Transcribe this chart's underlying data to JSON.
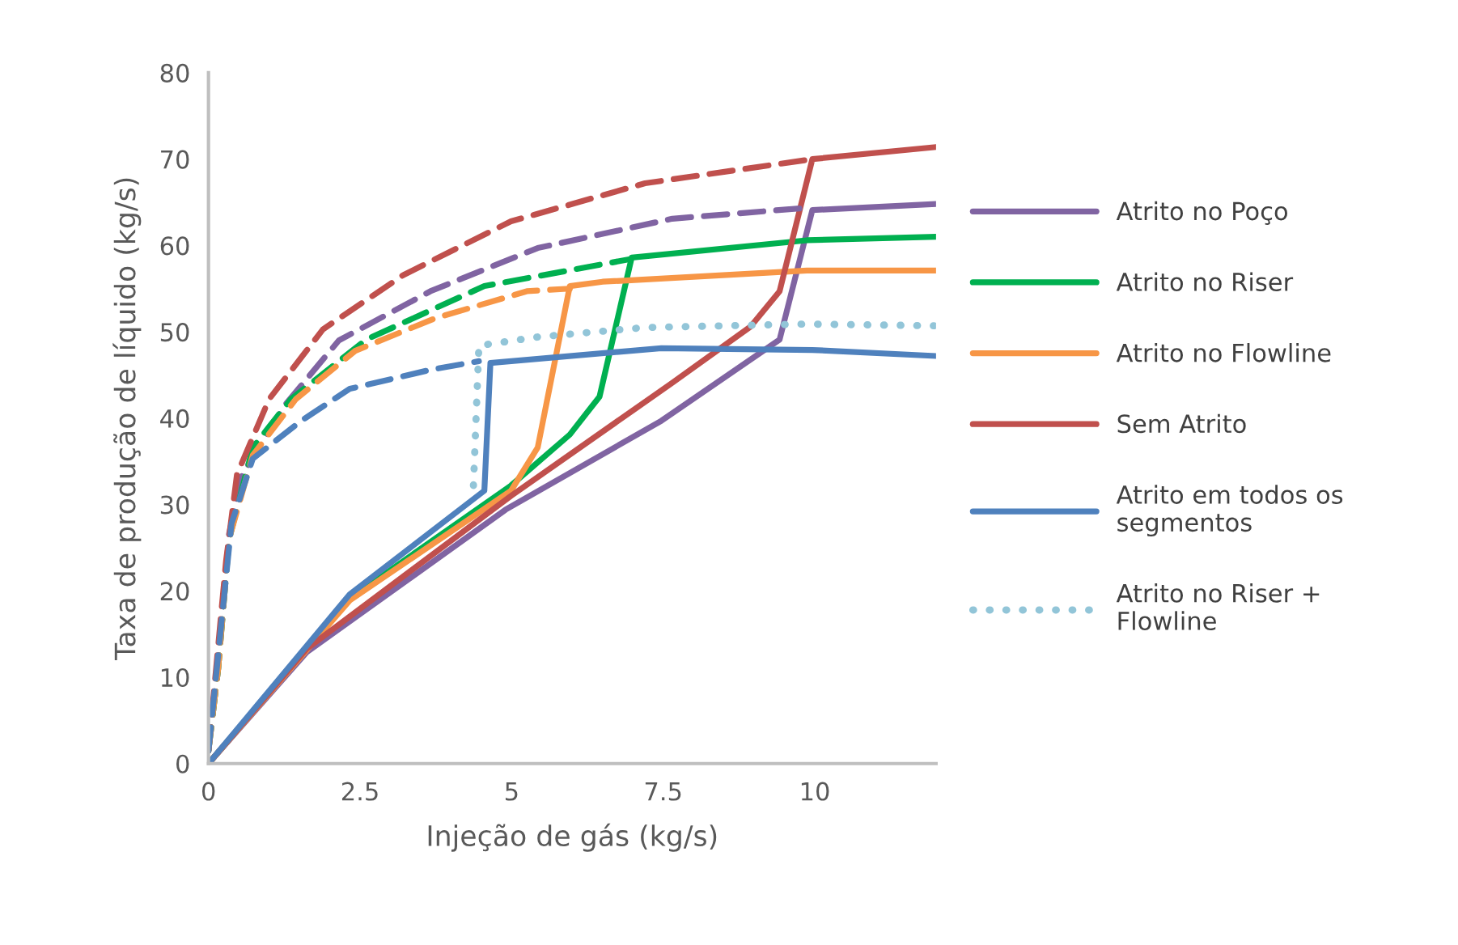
{
  "chart_data": {
    "type": "line",
    "xlabel": "Injeção de gás (kg/s)",
    "ylabel": "Taxa de produção de líquido (kg/s)",
    "xlim": [
      0,
      12
    ],
    "xticks": [
      0,
      2.5,
      5,
      7.5,
      10
    ],
    "ylim": [
      0,
      80
    ],
    "yticks": [
      0,
      10,
      20,
      30,
      40,
      50,
      60,
      70,
      80
    ],
    "grid": false,
    "legend": "right",
    "marker": "none",
    "series": [
      {
        "name": "Atrito no Poço",
        "color": "#8064a2",
        "line_style": "solid",
        "x": [
          0,
          1.62,
          4.9,
          7.47,
          9.42,
          9.96,
          12
        ],
        "values": [
          0,
          12.9,
          29.4,
          39.7,
          49.1,
          64.1,
          64.8
        ]
      },
      {
        "name": "Atrito no Riser",
        "color": "#00b050",
        "line_style": "solid",
        "x": [
          0,
          2.33,
          4.99,
          5.96,
          6.45,
          6.98,
          9.87,
          12
        ],
        "values": [
          0,
          19.1,
          32.2,
          38.1,
          42.5,
          58.6,
          60.6,
          61
        ]
      },
      {
        "name": "Atrito no Flowline",
        "color": "#f79646",
        "line_style": "solid",
        "x": [
          0,
          2.33,
          4.99,
          5.43,
          5.96,
          6.5,
          9.87,
          12
        ],
        "values": [
          0,
          18.9,
          31.6,
          36.6,
          55.3,
          55.8,
          57.1,
          57.1
        ]
      },
      {
        "name": "Sem Atrito",
        "color": "#c0504d",
        "line_style": "solid",
        "x": [
          0,
          1.62,
          4.99,
          7.65,
          8.94,
          9.42,
          9.96,
          12
        ],
        "values": [
          0,
          13.3,
          31,
          44.1,
          50.6,
          54.7,
          70,
          71.4
        ]
      },
      {
        "name": "Atrito em todos os segmentos",
        "color": "#4f81bd",
        "line_style": "solid",
        "x": [
          0,
          2.33,
          4.55,
          4.65,
          7.47,
          9.96,
          12
        ],
        "values": [
          0,
          19.6,
          31.6,
          46.4,
          48.1,
          47.9,
          47.2
        ]
      },
      {
        "name": "Atrito no Riser + Flowline",
        "color": "#92c5d8",
        "line_style": "dotted",
        "x": [
          4.37,
          4.46,
          5.43,
          7.2,
          9.87,
          12
        ],
        "values": [
          32.2,
          48.4,
          49.4,
          50.5,
          50.9,
          50.7
        ]
      },
      {
        "color": "#8064a2",
        "line_style": "dashed",
        "x": [
          0,
          0.16,
          0.34,
          0.56,
          1.27,
          2.15,
          3.66,
          5.43,
          7.65,
          9.95
        ],
        "values": [
          1.5,
          11,
          26.6,
          33.5,
          41.6,
          49,
          54.7,
          59.7,
          63.1,
          64.4
        ]
      },
      {
        "color": "#00b050",
        "line_style": "dashed",
        "x": [
          0,
          0.16,
          0.34,
          0.73,
          1.36,
          2.6,
          4.55,
          6.94
        ],
        "values": [
          1.5,
          11,
          26,
          36.6,
          42.2,
          49.1,
          55.3,
          58.4
        ]
      },
      {
        "color": "#f79646",
        "line_style": "dashed",
        "x": [
          0,
          0.16,
          0.34,
          0.73,
          1.44,
          2.42,
          3.75,
          5.25,
          5.96
        ],
        "values": [
          1.5,
          11,
          26,
          35.7,
          42.2,
          47.8,
          51.6,
          54.7,
          55
        ]
      },
      {
        "color": "#c0504d",
        "line_style": "dashed",
        "x": [
          0,
          0.29,
          0.47,
          1.0,
          1.89,
          3.22,
          4.99,
          7.2,
          9.96
        ],
        "values": [
          1.5,
          23.5,
          33.5,
          42.2,
          50.3,
          56.6,
          62.8,
          67.2,
          70
        ]
      },
      {
        "color": "#4f81bd",
        "line_style": "dashed",
        "x": [
          0,
          0.38,
          0.73,
          1.53,
          2.33,
          3.66,
          4.46
        ],
        "values": [
          1.5,
          27.8,
          35.3,
          39.7,
          43.4,
          45.6,
          46.6
        ]
      }
    ]
  }
}
